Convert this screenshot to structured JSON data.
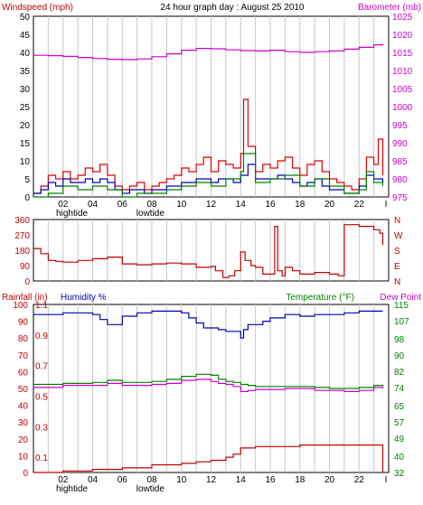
{
  "header": {
    "left_label": "Windspeed (mph)",
    "title": "24 hour graph day : August 25 2010",
    "right_label": "Barometer (mb)"
  },
  "tide": {
    "hightide": "hightide",
    "lowtide": "lowtide"
  },
  "hour_ticks": [
    "02",
    "04",
    "06",
    "08",
    "10",
    "12",
    "14",
    "16",
    "18",
    "20",
    "22",
    "I"
  ],
  "chart_data": [
    {
      "type": "line",
      "title": "24 hour graph day : August 25 2010",
      "xlabel": "",
      "ylabel": "Windspeed (mph)",
      "ylabel_right": "Barometer (mb)",
      "x_hours": [
        0,
        24
      ],
      "ylim": [
        0,
        50
      ],
      "y_ticks": [
        0,
        5,
        10,
        15,
        20,
        25,
        30,
        35,
        40,
        45,
        50
      ],
      "ylim_right": [
        975,
        1025
      ],
      "y_ticks_right": [
        975,
        980,
        985,
        990,
        995,
        1000,
        1005,
        1010,
        1015,
        1020,
        1025
      ],
      "colors": {
        "wind_gust": "#e00000",
        "wind_avg": "#0000c0",
        "wind_speed": "#008000",
        "barometer": "#cc00cc"
      },
      "series": [
        {
          "axis": "right",
          "color": "#cc00cc",
          "x": [
            0,
            1,
            2,
            3,
            4,
            5,
            6,
            7,
            8,
            9,
            10,
            11,
            12,
            13,
            14,
            15,
            16,
            17,
            18,
            19,
            20,
            21,
            22,
            23,
            23.6
          ],
          "values": [
            1014.2,
            1014.1,
            1013.9,
            1013.6,
            1013.3,
            1013.1,
            1013.0,
            1013.2,
            1013.8,
            1014.6,
            1015.6,
            1016.1,
            1016.0,
            1015.7,
            1015.5,
            1015.4,
            1015.6,
            1015.2,
            1015.0,
            1015.2,
            1015.4,
            1015.9,
            1016.4,
            1017.1,
            1017.3
          ]
        },
        {
          "axis": "left",
          "color": "#e00000",
          "x": [
            0,
            0.5,
            1,
            1.5,
            2,
            2.5,
            3,
            3.5,
            4,
            4.5,
            5,
            5.5,
            6,
            6.5,
            7,
            7.5,
            8,
            8.5,
            9,
            9.5,
            10,
            10.5,
            11,
            11.5,
            12,
            12.5,
            13,
            13.5,
            14,
            14.2,
            14.5,
            15,
            15.5,
            16,
            16.5,
            17,
            17.5,
            18,
            18.5,
            19,
            19.5,
            20,
            20.5,
            21,
            21.5,
            22,
            22.5,
            23,
            23.3,
            23.6
          ],
          "values": [
            1,
            3,
            6,
            5,
            7,
            5,
            6,
            8,
            7,
            9,
            6,
            3,
            2,
            3,
            4,
            2,
            3,
            4,
            5,
            6,
            8,
            7,
            9,
            11,
            7,
            10,
            9,
            8,
            12,
            27,
            14,
            7,
            9,
            8,
            10,
            11,
            8,
            6,
            9,
            10,
            7,
            5,
            4,
            3,
            2,
            5,
            11,
            9,
            16,
            6
          ]
        },
        {
          "axis": "left",
          "color": "#0000c0",
          "x": [
            0,
            0.5,
            1,
            1.5,
            2,
            2.5,
            3,
            3.5,
            4,
            4.5,
            5,
            5.5,
            6,
            6.5,
            7,
            7.5,
            8,
            8.5,
            9,
            9.5,
            10,
            10.5,
            11,
            11.5,
            12,
            12.5,
            13,
            13.5,
            14,
            14.5,
            15,
            15.5,
            16,
            16.5,
            17,
            17.5,
            18,
            18.5,
            19,
            19.5,
            20,
            20.5,
            21,
            21.5,
            22,
            22.5,
            23,
            23.6
          ],
          "values": [
            1,
            2,
            4,
            3,
            5,
            4,
            4,
            5,
            4,
            5,
            4,
            2,
            1,
            2,
            2,
            1,
            2,
            2,
            3,
            3,
            4,
            4,
            5,
            5,
            4,
            5,
            5,
            4,
            6,
            9,
            5,
            5,
            5,
            6,
            5,
            4,
            3,
            4,
            5,
            3,
            2,
            2,
            1,
            1,
            3,
            6,
            5,
            4
          ]
        },
        {
          "axis": "left",
          "color": "#008000",
          "x": [
            0,
            1,
            2,
            3,
            4,
            5,
            6,
            7,
            8,
            9,
            10,
            11,
            12,
            13,
            14,
            14.2,
            15,
            16,
            17,
            18,
            19,
            20,
            21,
            22,
            22.5,
            23,
            23.6
          ],
          "values": [
            0,
            1,
            3,
            2,
            3,
            2,
            0,
            1,
            1,
            2,
            3,
            4,
            3,
            5,
            7,
            12,
            4,
            5,
            6,
            3,
            5,
            3,
            1,
            2,
            7,
            4,
            3
          ]
        }
      ]
    },
    {
      "type": "line",
      "xlabel": "",
      "ylabel": "",
      "ylim": [
        0,
        360
      ],
      "y_ticks": [
        0,
        90,
        180,
        270,
        360
      ],
      "compass_labels": [
        "N",
        "W",
        "S",
        "E",
        "N"
      ],
      "colors": {
        "direction": "#c00000"
      },
      "series": [
        {
          "color": "#c00000",
          "x": [
            0,
            0.5,
            1,
            1.5,
            2,
            3,
            4,
            5,
            6,
            7,
            8,
            9,
            10,
            11,
            12,
            12.3,
            12.8,
            13.2,
            13.6,
            14,
            14.3,
            14.7,
            15,
            15.5,
            16,
            16.3,
            16.5,
            16.8,
            17,
            17.5,
            18,
            19,
            20,
            20.6,
            21,
            22,
            23,
            23.4,
            23.6
          ],
          "values": [
            190,
            160,
            120,
            115,
            110,
            120,
            130,
            140,
            100,
            95,
            100,
            105,
            100,
            80,
            85,
            60,
            20,
            30,
            60,
            170,
            120,
            90,
            80,
            40,
            40,
            320,
            60,
            30,
            80,
            60,
            40,
            50,
            40,
            30,
            330,
            320,
            300,
            280,
            210
          ]
        }
      ]
    },
    {
      "type": "line",
      "xlabel": "",
      "ylabel": "Rainfall (in)",
      "ylabel2": "Humidity %",
      "ylabel_right": "Temperature (°F)",
      "ylabel_right2": "Dew Point",
      "ylim_humidity": [
        0,
        100
      ],
      "y_ticks_humidity": [
        0,
        10,
        20,
        30,
        40,
        50,
        60,
        70,
        80,
        90,
        100
      ],
      "ylim_rain": [
        0,
        1.1
      ],
      "y_ticks_rain": [
        0,
        0.1,
        0.2,
        0.3,
        0.4,
        0.5,
        0.6,
        0.7,
        0.8,
        0.9,
        1,
        1.1
      ],
      "ylim_temp": [
        32,
        115
      ],
      "y_ticks_temp": [
        32,
        40,
        49,
        57,
        65,
        74,
        82,
        90,
        98,
        107,
        115
      ],
      "colors": {
        "humidity": "#0000b0",
        "temperature": "#008000",
        "dew_point": "#cc00cc",
        "rainfall": "#c00000"
      },
      "series": [
        {
          "axis": "humidity",
          "color": "#0000b0",
          "x": [
            0,
            1,
            2,
            3,
            4,
            4.5,
            5,
            6,
            7,
            8,
            9,
            10,
            10.5,
            11,
            11.5,
            12,
            12.5,
            13,
            13.5,
            14,
            14.2,
            14.5,
            15,
            15.5,
            16,
            17,
            18,
            19,
            20,
            21,
            22,
            23,
            23.6
          ],
          "values": [
            94,
            94,
            95,
            95,
            94,
            91,
            88,
            93,
            95,
            96,
            96,
            95,
            92,
            89,
            86,
            86,
            85,
            84,
            84,
            80,
            85,
            88,
            88,
            90,
            92,
            94,
            93,
            94,
            94,
            95,
            96,
            96,
            96
          ]
        },
        {
          "axis": "temp",
          "color": "#008000",
          "x": [
            0,
            1,
            2,
            3,
            4,
            5,
            6,
            7,
            8,
            9,
            10,
            11,
            12,
            12.5,
            13,
            13.5,
            14,
            14.5,
            15,
            16,
            17,
            18,
            19,
            20,
            21,
            22,
            23,
            23.6
          ],
          "values": [
            75.5,
            75.5,
            76,
            76,
            76.5,
            77.5,
            76.5,
            76.5,
            77,
            78,
            79.5,
            80.5,
            80,
            78,
            77,
            76.5,
            75.5,
            75,
            74.5,
            74.5,
            74.5,
            74.5,
            74,
            73.5,
            73.5,
            74,
            75,
            74.5
          ]
        },
        {
          "axis": "temp",
          "color": "#cc00cc",
          "x": [
            0,
            1,
            2,
            3,
            4,
            5,
            6,
            7,
            8,
            9,
            10,
            11,
            12,
            12.5,
            13,
            13.5,
            14,
            14.5,
            15,
            16,
            17,
            18,
            19,
            20,
            21,
            22,
            23,
            23.6
          ],
          "values": [
            74,
            74,
            75,
            75,
            75,
            76,
            75,
            75,
            75.5,
            76,
            77.5,
            78,
            77,
            76,
            75.5,
            74.5,
            72,
            72.5,
            73,
            73,
            73.5,
            73.5,
            72.5,
            72.5,
            72,
            72.5,
            74,
            73.5
          ]
        },
        {
          "axis": "rain",
          "color": "#c00000",
          "x": [
            0,
            2,
            4,
            6,
            8,
            10,
            11,
            12,
            13,
            13.5,
            14,
            15,
            16,
            18,
            20,
            22,
            23,
            23.6
          ],
          "values": [
            0,
            0.01,
            0.02,
            0.03,
            0.05,
            0.06,
            0.07,
            0.08,
            0.1,
            0.12,
            0.16,
            0.17,
            0.17,
            0.18,
            0.18,
            0.18,
            0.18,
            0
          ]
        }
      ]
    }
  ],
  "panel3_labels": {
    "rain": "Rainfall (in)",
    "humidity": "Humidity %",
    "temperature": "Temperature (°F)",
    "dew": "Dew Point"
  }
}
